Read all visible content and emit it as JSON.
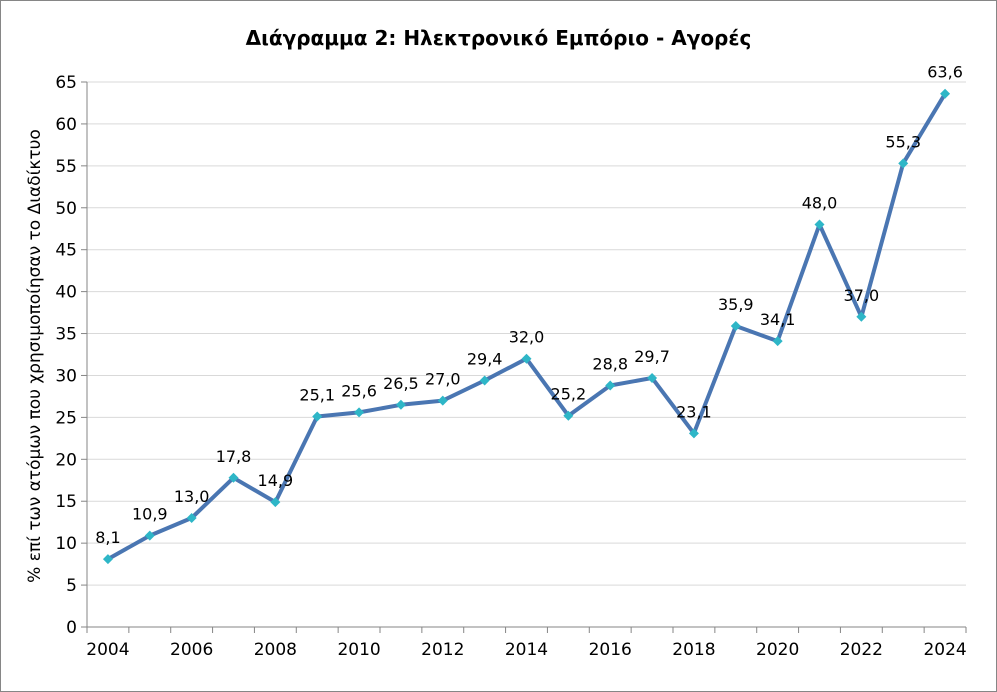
{
  "chart_data": {
    "type": "line",
    "title": "Διάγραμμα 2: Ηλεκτρονικό Εμπόριο - Αγορές",
    "xlabel": "",
    "ylabel": "% επί των ατόμων που χρησιμοποίησαν το Διαδίκτυο",
    "x": [
      2004,
      2005,
      2006,
      2007,
      2008,
      2009,
      2010,
      2011,
      2012,
      2013,
      2014,
      2015,
      2016,
      2017,
      2018,
      2019,
      2020,
      2021,
      2022,
      2023,
      2024
    ],
    "x_tick_labels": [
      "2004",
      "2006",
      "2008",
      "2010",
      "2012",
      "2014",
      "2016",
      "2018",
      "2020",
      "2022",
      "2024"
    ],
    "y_tick_labels": [
      "0",
      "5",
      "10",
      "15",
      "20",
      "25",
      "30",
      "35",
      "40",
      "45",
      "50",
      "55",
      "60",
      "65"
    ],
    "series": [
      {
        "values": [
          8.1,
          10.9,
          13.0,
          17.8,
          14.9,
          25.1,
          25.6,
          26.5,
          27.0,
          29.4,
          32.0,
          25.2,
          28.8,
          29.7,
          23.1,
          35.9,
          34.1,
          48.0,
          37.0,
          55.3,
          63.6
        ],
        "data_labels": [
          "8,1",
          "10,9",
          "13,0",
          "17,8",
          "14,9",
          "25,1",
          "25,6",
          "26,5",
          "27,0",
          "29,4",
          "32,0",
          "25,2",
          "28,8",
          "29,7",
          "23,1",
          "35,9",
          "34,1",
          "48,0",
          "37,0",
          "55,3",
          "63,6"
        ],
        "line_color": "#4a76b2",
        "marker_color": "#2eb6c7"
      }
    ],
    "ylim": [
      0,
      65
    ],
    "xlim": [
      2003.5,
      2024.5
    ],
    "grid": true,
    "legend": "none"
  }
}
